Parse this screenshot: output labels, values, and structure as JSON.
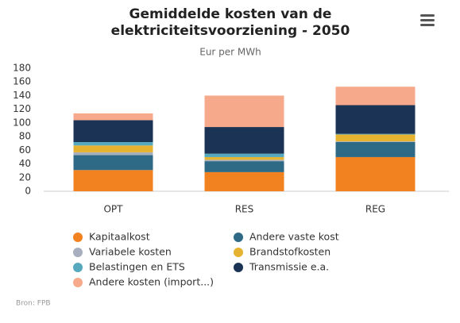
{
  "chart_data": {
    "type": "stacked-bar",
    "title": "Gemiddelde kosten van de elektriciteitsvoorziening - 2050",
    "subtitle": "Eur per MWh",
    "categories": [
      "OPT",
      "RES",
      "REG"
    ],
    "series": [
      {
        "name": "Kapitaalkost",
        "color": "#f28120",
        "values": [
          31,
          28,
          50
        ]
      },
      {
        "name": "Andere vaste kost",
        "color": "#2e6a85",
        "values": [
          22,
          16,
          22
        ]
      },
      {
        "name": "Variabele kosten",
        "color": "#a7afbf",
        "values": [
          4,
          2,
          1
        ]
      },
      {
        "name": "Brandstofkosten",
        "color": "#e6b331",
        "values": [
          10,
          4,
          10
        ]
      },
      {
        "name": "Belastingen en ETS",
        "color": "#56a9bd",
        "values": [
          5,
          5,
          1
        ]
      },
      {
        "name": "Transmissie e.a.",
        "color": "#1b3355",
        "values": [
          32,
          39,
          42
        ]
      },
      {
        "name": "Andere kosten (import...)",
        "color": "#f7aa8b",
        "values": [
          10,
          46,
          27
        ]
      }
    ],
    "ylim": [
      0,
      180
    ],
    "yticks": [
      0,
      20,
      40,
      60,
      80,
      100,
      120,
      140,
      160,
      180
    ],
    "grid": false,
    "source": "Bron: FPB"
  }
}
